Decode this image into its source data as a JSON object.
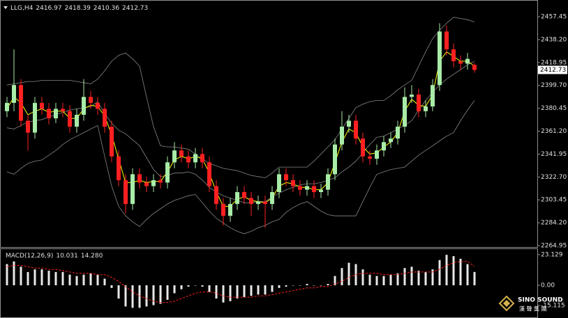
{
  "chart_data": [
    {
      "type": "candlestick",
      "title": "LLG,H4",
      "open": [
        2378,
        2385,
        2400,
        2370,
        2360,
        2385,
        2380,
        2372,
        2380,
        2378,
        2365,
        2375,
        2390,
        2385,
        2380,
        2365,
        2340,
        2320,
        2300,
        2325,
        2318,
        2315,
        2320,
        2318,
        2335,
        2345,
        2340,
        2335,
        2342,
        2335,
        2315,
        2300,
        2290,
        2300,
        2310,
        2305,
        2300,
        2302,
        2300,
        2310,
        2325,
        2320,
        2315,
        2312,
        2315,
        2310,
        2312,
        2325,
        2350,
        2365,
        2370,
        2355,
        2340,
        2338,
        2345,
        2352,
        2355,
        2365,
        2390,
        2392,
        2378,
        2382,
        2400,
        2445,
        2430,
        2420,
        2418,
        2416.97
      ],
      "high": [
        2390,
        2430,
        2405,
        2375,
        2390,
        2390,
        2385,
        2385,
        2385,
        2383,
        2380,
        2405,
        2395,
        2390,
        2385,
        2370,
        2345,
        2325,
        2330,
        2330,
        2323,
        2325,
        2325,
        2340,
        2352,
        2350,
        2345,
        2347,
        2347,
        2340,
        2320,
        2305,
        2305,
        2315,
        2315,
        2310,
        2307,
        2307,
        2315,
        2330,
        2330,
        2325,
        2320,
        2320,
        2320,
        2317,
        2330,
        2355,
        2378,
        2375,
        2375,
        2360,
        2345,
        2350,
        2357,
        2360,
        2370,
        2398,
        2400,
        2397,
        2387,
        2405,
        2452,
        2450,
        2435,
        2425,
        2427,
        2418.39
      ],
      "low": [
        2373,
        2378,
        2365,
        2345,
        2355,
        2375,
        2367,
        2368,
        2373,
        2360,
        2360,
        2370,
        2380,
        2375,
        2360,
        2335,
        2315,
        2292,
        2295,
        2313,
        2310,
        2310,
        2313,
        2313,
        2330,
        2335,
        2330,
        2330,
        2330,
        2310,
        2295,
        2282,
        2285,
        2295,
        2300,
        2290,
        2295,
        2280,
        2295,
        2305,
        2315,
        2310,
        2307,
        2307,
        2305,
        2305,
        2307,
        2320,
        2345,
        2360,
        2350,
        2335,
        2333,
        2333,
        2340,
        2347,
        2350,
        2360,
        2385,
        2373,
        2373,
        2378,
        2395,
        2425,
        2415,
        2413,
        2413,
        2410.36
      ],
      "close": [
        2385,
        2400,
        2370,
        2360,
        2385,
        2380,
        2372,
        2380,
        2378,
        2365,
        2375,
        2390,
        2385,
        2380,
        2365,
        2340,
        2320,
        2300,
        2325,
        2318,
        2315,
        2320,
        2318,
        2335,
        2345,
        2340,
        2335,
        2342,
        2335,
        2315,
        2300,
        2290,
        2300,
        2310,
        2305,
        2300,
        2302,
        2300,
        2310,
        2325,
        2320,
        2315,
        2312,
        2315,
        2310,
        2312,
        2325,
        2350,
        2365,
        2370,
        2355,
        2340,
        2338,
        2345,
        2352,
        2355,
        2365,
        2390,
        2392,
        2378,
        2382,
        2400,
        2445,
        2430,
        2420,
        2418,
        2422,
        2412.73
      ],
      "bull_color": "#a8eca8",
      "bear_color": "#ff2020",
      "series": [
        {
          "color": "#a9a9a9",
          "values": [
            2400,
            2401,
            2402,
            2403,
            2403,
            2404,
            2404,
            2404,
            2404,
            2404,
            2403,
            2402,
            2401,
            2405,
            2412,
            2420,
            2425,
            2427,
            2422,
            2416,
            2390,
            2365,
            2349,
            2348,
            2348,
            2347,
            2346,
            2342,
            2338,
            2334,
            2332,
            2330,
            2329,
            2328,
            2326,
            2324,
            2323,
            2322,
            2326,
            2331,
            2331,
            2331,
            2331,
            2331,
            2336,
            2342,
            2348,
            2354,
            2363,
            2372,
            2381,
            2384,
            2386,
            2387,
            2387,
            2391,
            2396,
            2400,
            2404,
            2416,
            2428,
            2439,
            2446,
            2452,
            2457,
            2456,
            2455,
            2453
          ]
        },
        {
          "color": "#a9a9a9",
          "values": [
            2364,
            2363,
            2366,
            2369,
            2370,
            2371,
            2373,
            2375,
            2377,
            2379,
            2380,
            2381,
            2382,
            2386,
            2376,
            2368,
            2362,
            2359,
            2354,
            2349,
            2339,
            2329,
            2323,
            2324,
            2326,
            2326,
            2327,
            2325,
            2320,
            2314,
            2310,
            2307,
            2305,
            2303,
            2301,
            2301,
            2302,
            2302,
            2306,
            2309,
            2312,
            2314,
            2316,
            2317,
            2317,
            2318,
            2320,
            2322,
            2327,
            2331,
            2336,
            2343,
            2350,
            2356,
            2357,
            2360,
            2363,
            2366,
            2370,
            2379,
            2387,
            2394,
            2400,
            2405,
            2409,
            2413,
            2417,
            2420
          ]
        },
        {
          "color": "#a9a9a9",
          "values": [
            2327,
            2325,
            2330,
            2334,
            2336,
            2337,
            2341,
            2345,
            2350,
            2354,
            2357,
            2360,
            2363,
            2366,
            2340,
            2315,
            2298,
            2290,
            2285,
            2281,
            2287,
            2292,
            2296,
            2300,
            2303,
            2305,
            2307,
            2308,
            2301,
            2294,
            2288,
            2284,
            2280,
            2277,
            2275,
            2277,
            2280,
            2282,
            2285,
            2287,
            2293,
            2297,
            2300,
            2302,
            2298,
            2294,
            2291,
            2290,
            2290,
            2290,
            2290,
            2302,
            2314,
            2325,
            2327,
            2329,
            2330,
            2331,
            2336,
            2341,
            2345,
            2349,
            2353,
            2357,
            2360,
            2370,
            2379,
            2387
          ]
        },
        {
          "color": "#ffff00",
          "values": [
            2380,
            2390,
            2385,
            2375,
            2378,
            2380,
            2377,
            2378,
            2378,
            2372,
            2372,
            2380,
            2383,
            2382,
            2374,
            2358,
            2338,
            2318,
            2318,
            2320,
            2318,
            2319,
            2319,
            2327,
            2337,
            2340,
            2338,
            2340,
            2338,
            2326,
            2310,
            2298,
            2298,
            2304,
            2306,
            2303,
            2302,
            2301,
            2305,
            2315,
            2318,
            2317,
            2314,
            2314,
            2312,
            2312,
            2318,
            2335,
            2352,
            2363,
            2360,
            2348,
            2342,
            2343,
            2348,
            2352,
            2360,
            2378,
            2388,
            2383,
            2382,
            2392,
            2420,
            2428,
            2424,
            2420,
            2420,
            2416
          ]
        }
      ],
      "ylim": [
        2263.8,
        2471.5
      ],
      "yticks": [
        2457.45,
        {
          "value": 2438.2,
          "label": "2438.20"
        },
        2418.95,
        {
          "value": 2399.7,
          "label": "2399.70"
        },
        2380.45,
        {
          "value": 2361.2,
          "label": "2361.20"
        },
        2341.95,
        {
          "value": 2322.7,
          "label": "2322.70"
        },
        2303.45,
        {
          "value": 2284.2,
          "label": "2284.20"
        },
        2264.95
      ],
      "grid": false
    },
    {
      "type": "macd",
      "title": "MACD(12,26,9)",
      "histogram": {
        "color": "#e8e8e8",
        "values": [
          16,
          18,
          14,
          10,
          12,
          12,
          11,
          10,
          10,
          8,
          7,
          8,
          9,
          8,
          5,
          -2,
          -10,
          -16,
          -17,
          -17,
          -16,
          -15,
          -14,
          -11,
          -6,
          -3,
          -1,
          0,
          -1,
          -5,
          -10,
          -13,
          -12,
          -10,
          -9,
          -8,
          -7,
          -7,
          -5,
          -2,
          -1,
          0,
          0,
          1,
          0,
          0,
          1,
          7,
          13,
          17,
          16,
          12,
          8,
          7,
          7,
          8,
          9,
          13,
          14,
          11,
          10,
          12,
          19,
          23,
          22,
          20,
          16,
          10.031
        ]
      },
      "signal": {
        "color": "#ff2020",
        "values": [
          14,
          15,
          15,
          14,
          13,
          13,
          12,
          12,
          11,
          10,
          9,
          9,
          9,
          8,
          8,
          6,
          3,
          -1,
          -5,
          -8,
          -10,
          -12,
          -13,
          -13,
          -12,
          -10,
          -8,
          -6,
          -5,
          -5,
          -6,
          -8,
          -9,
          -9,
          -9,
          -9,
          -8,
          -8,
          -7,
          -6,
          -5,
          -4,
          -3,
          -2,
          -2,
          -1,
          -1,
          1,
          3,
          6,
          8,
          9,
          9,
          9,
          8,
          8,
          8,
          9,
          10,
          10,
          10,
          10,
          12,
          15,
          17,
          18,
          18,
          14.28
        ],
        "value_labels": [
          null,
          null,
          null,
          null,
          null,
          null,
          null,
          null,
          null,
          null,
          null,
          null,
          null,
          null,
          null,
          null,
          null,
          null,
          null,
          null,
          null,
          null,
          null,
          null,
          null,
          null,
          null,
          null,
          null,
          null,
          null,
          null,
          null,
          null,
          null,
          null,
          null,
          null,
          null,
          null,
          null,
          null,
          null,
          null,
          null,
          null,
          null,
          null,
          null,
          null,
          null,
          null,
          null,
          null,
          null,
          null,
          null,
          null,
          null,
          null,
          null,
          null,
          null,
          null,
          null,
          null,
          null,
          "14.280"
        ]
      },
      "ylim": [
        -24.7,
        27.3
      ],
      "yticks": [
        23.129,
        {
          "value": 0,
          "label": "0.00"
        },
        -15.115
      ]
    }
  ],
  "watermark": {
    "name": "SINO SOUND",
    "subtitle": "漢 聲 集 團"
  }
}
